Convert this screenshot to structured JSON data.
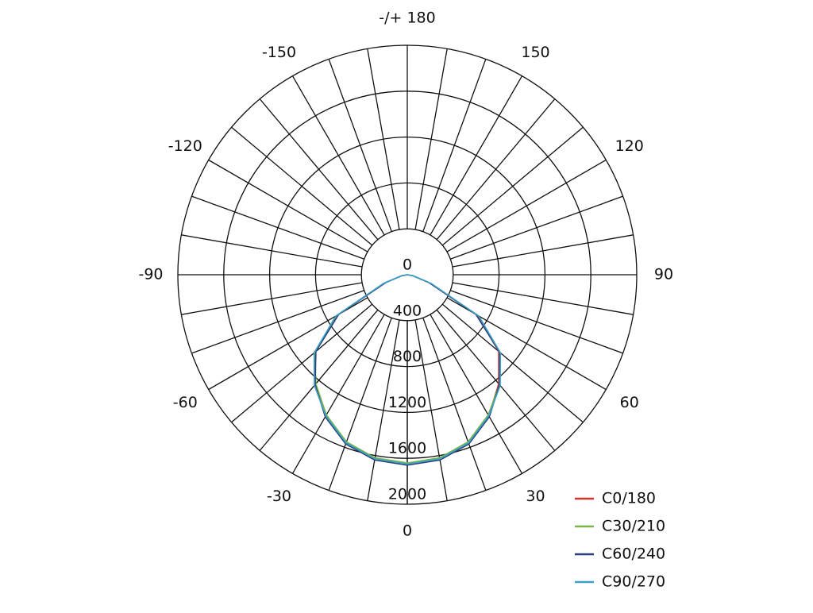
{
  "chart_data": {
    "type": "polar",
    "x": [
      -90,
      -80,
      -70,
      -60,
      -50,
      -40,
      -30,
      -20,
      -10,
      0,
      10,
      20,
      30,
      40,
      50,
      60,
      70,
      80,
      90
    ],
    "series": [
      {
        "name": "C0/180",
        "color": "#d8322a",
        "values": [
          0,
          50,
          200,
          700,
          1060,
          1250,
          1420,
          1560,
          1630,
          1650,
          1630,
          1560,
          1420,
          1240,
          1040,
          700,
          200,
          50,
          0
        ]
      },
      {
        "name": "C30/210",
        "color": "#7ab648",
        "values": [
          0,
          50,
          210,
          710,
          1050,
          1240,
          1410,
          1550,
          1620,
          1640,
          1620,
          1550,
          1410,
          1250,
          1060,
          720,
          210,
          50,
          0
        ]
      },
      {
        "name": "C60/240",
        "color": "#2a3f7a",
        "values": [
          0,
          50,
          200,
          690,
          1040,
          1250,
          1430,
          1570,
          1640,
          1660,
          1640,
          1570,
          1430,
          1250,
          1050,
          690,
          200,
          50,
          0
        ]
      },
      {
        "name": "C90/270",
        "color": "#3aa0c8",
        "values": [
          0,
          50,
          220,
          720,
          1060,
          1260,
          1420,
          1560,
          1630,
          1650,
          1630,
          1560,
          1420,
          1260,
          1060,
          720,
          220,
          50,
          0
        ]
      }
    ],
    "rlim": [
      0,
      2000
    ],
    "rticks": [
      0,
      400,
      800,
      1200,
      1600,
      2000
    ],
    "xticks": [
      -150,
      -120,
      -90,
      -60,
      -30,
      0,
      30,
      60,
      90,
      120,
      150,
      {
        "value": 180,
        "label": "-/+ 180"
      }
    ],
    "legend": "bottom-right"
  }
}
